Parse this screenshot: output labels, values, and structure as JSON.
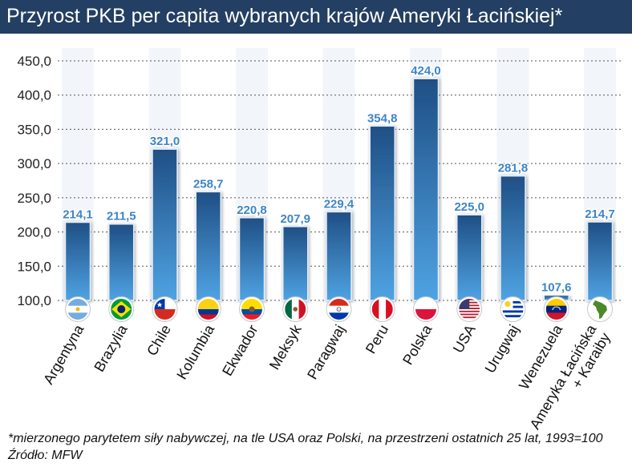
{
  "title": "Przyrost PKB per capita wybranych krajów Ameryki Łacińskiej*",
  "footnote": "*mierzonego parytetem siły nabywczej, na tle USA oraz Polski, na przestrzeni ostatnich 25 lat, 1993=100",
  "source": "Źródło: MFW",
  "colors": {
    "title_bg": "#233f63",
    "bar_top": "#1f4f85",
    "bar_bottom": "#4fa3e3",
    "label_text": "#3f85c6",
    "stripe": "#e8eef8"
  },
  "chart_data": {
    "type": "bar",
    "title": "Przyrost PKB per capita wybranych krajów Ameryki Łacińskiej*",
    "categories": [
      "Argentyna",
      "Brazylia",
      "Chile",
      "Kolumbia",
      "Ekwador",
      "Meksyk",
      "Paragwaj",
      "Peru",
      "Polska",
      "USA",
      "Urugwaj",
      "Wenezuela",
      "Ameryka Łacińska + Karaiby"
    ],
    "values": [
      214.1,
      211.5,
      321.0,
      258.7,
      220.8,
      207.9,
      229.4,
      354.8,
      424.0,
      225.0,
      281.8,
      107.6,
      214.7
    ],
    "value_labels": [
      "214,1",
      "211,5",
      "321,0",
      "258,7",
      "220,8",
      "207,9",
      "229,4",
      "354,8",
      "424,0",
      "225,0",
      "281,8",
      "107,6",
      "214,7"
    ],
    "yticks": [
      100,
      150,
      200,
      250,
      300,
      350,
      400,
      450
    ],
    "ytick_labels": [
      "100,0",
      "150,0",
      "200,0",
      "250,0",
      "300,0",
      "350,0",
      "400,0",
      "450,0"
    ],
    "ylim": [
      100,
      450
    ],
    "xlabel": "",
    "ylabel": "",
    "grid": "horizontal dashed",
    "legend": "none",
    "flags": [
      "argentina-flag-icon",
      "brazil-flag-icon",
      "chile-flag-icon",
      "colombia-flag-icon",
      "ecuador-flag-icon",
      "mexico-flag-icon",
      "paraguay-flag-icon",
      "peru-flag-icon",
      "poland-flag-icon",
      "usa-flag-icon",
      "uruguay-flag-icon",
      "venezuela-flag-icon",
      "latin-america-map-icon"
    ]
  }
}
